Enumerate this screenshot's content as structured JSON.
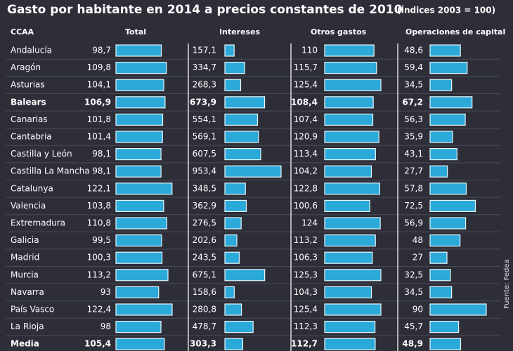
{
  "chart_data": {
    "type": "table-bar",
    "title": "Gasto por habitante en 2014 a precios constantes de 2010",
    "subtitle": "(Índices 2003 = 100)",
    "row_header": "CCAA",
    "source": "Fuente: Fedea",
    "bold_rows": [
      3,
      17
    ],
    "color": "#2ba9d9",
    "categories": [
      "Andalucía",
      "Aragón",
      "Asturias",
      "Balears",
      "Canarias",
      "Cantabria",
      "Castilla y León",
      "Castilla La Mancha",
      "Catalunya",
      "Valencia",
      "Extremadura",
      "Galicia",
      "Madrid",
      "Murcia",
      "Navarra",
      "País Vasco",
      "La Rioja",
      "Media"
    ],
    "series": [
      {
        "name": "Total",
        "values": [
          98.7,
          109.8,
          104.1,
          106.9,
          101.8,
          101.4,
          98.1,
          98.1,
          122.1,
          103.8,
          110.8,
          99.5,
          100.3,
          113.2,
          93,
          122.4,
          98,
          105.4
        ],
        "value_labels": [
          "98,7",
          "109,8",
          "104,1",
          "106,9",
          "101,8",
          "101,4",
          "98,1",
          "98,1",
          "122,1",
          "103,8",
          "110,8",
          "99,5",
          "100,3",
          "113,2",
          "93",
          "122,4",
          "98",
          "105,4"
        ]
      },
      {
        "name": "Intereses",
        "values": [
          157.1,
          334.7,
          268.3,
          673.9,
          554.1,
          569.1,
          607.5,
          953.4,
          348.5,
          362.9,
          276.5,
          202.6,
          243.5,
          675.1,
          158.6,
          280.8,
          478.7,
          303.3
        ],
        "value_labels": [
          "157,1",
          "334,7",
          "268,3",
          "673,9",
          "554,1",
          "569,1",
          "607,5",
          "953,4",
          "348,5",
          "362,9",
          "276,5",
          "202,6",
          "243,5",
          "675,1",
          "158,6",
          "280,8",
          "478,7",
          "303,3"
        ]
      },
      {
        "name": "Otros gastos",
        "values": [
          110,
          115.7,
          125.4,
          108.4,
          107.4,
          120.9,
          113.4,
          104.2,
          122.8,
          100.6,
          124,
          113.2,
          106.3,
          125.3,
          104.3,
          125.4,
          112.3,
          112.7
        ],
        "value_labels": [
          "110",
          "115,7",
          "125,4",
          "108,4",
          "107,4",
          "120,9",
          "113,4",
          "104,2",
          "122,8",
          "100,6",
          "124",
          "113,2",
          "106,3",
          "125,3",
          "104,3",
          "125,4",
          "112,3",
          "112,7"
        ]
      },
      {
        "name": "Operaciones de capital",
        "values": [
          48.6,
          59.4,
          34.5,
          67.2,
          56.3,
          35.9,
          43.1,
          27.7,
          57.8,
          72.5,
          56.9,
          48,
          27,
          32.5,
          34.5,
          90,
          45.7,
          48.9
        ],
        "value_labels": [
          "48,6",
          "59,4",
          "34,5",
          "67,2",
          "56,3",
          "35,9",
          "43,1",
          "27,7",
          "57,8",
          "72,5",
          "56,9",
          "48",
          "27",
          "32,5",
          "34,5",
          "90",
          "45,7",
          "48,9"
        ]
      }
    ]
  }
}
